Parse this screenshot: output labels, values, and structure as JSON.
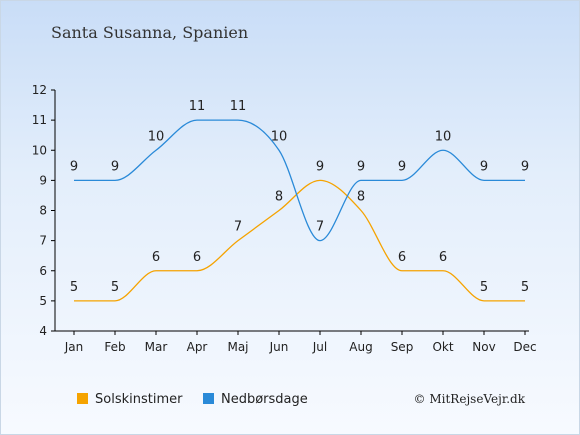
{
  "chart_data": {
    "type": "line",
    "title": "Santa Susanna, Spanien",
    "xlabel": "",
    "ylabel": "",
    "categories": [
      "Jan",
      "Feb",
      "Mar",
      "Apr",
      "Maj",
      "Jun",
      "Jul",
      "Aug",
      "Sep",
      "Okt",
      "Nov",
      "Dec"
    ],
    "ylim": [
      4,
      12
    ],
    "yticks": [
      4,
      5,
      6,
      7,
      8,
      9,
      10,
      11,
      12
    ],
    "grid": false,
    "legend_position": "bottom-left",
    "series": [
      {
        "name": "Solskinstimer",
        "color": "#f5a300",
        "values": [
          5,
          5,
          6,
          6,
          7,
          8,
          9,
          8,
          6,
          6,
          5,
          5
        ]
      },
      {
        "name": "Nedbørsdage",
        "color": "#2a8ad8",
        "values": [
          9,
          9,
          10,
          11,
          11,
          10,
          7,
          9,
          9,
          10,
          9,
          9
        ]
      }
    ],
    "credit": "© MitRejseVejr.dk"
  }
}
